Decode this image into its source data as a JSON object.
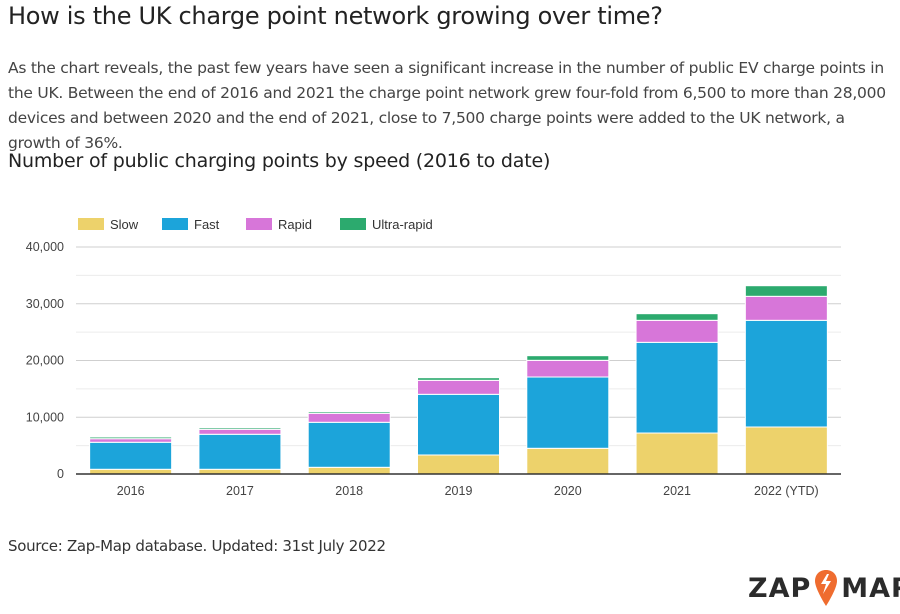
{
  "heading": "How is the UK charge point network growing over time?",
  "intro": "As the chart reveals, the past few years have seen a significant increase in the number of public EV charge points in the UK. Between the end of 2016 and 2021 the charge point network grew four-fold from 6,500 to more than 28,000 devices and between 2020 and the end of 2021, close to 7,500 charge points were added to the UK network, a growth of 36%.",
  "chart_heading": "Number of public charging points by speed (2016 to date)",
  "source": "Source: Zap-Map database. Updated: 31st July 2022",
  "logo": {
    "left": "ZAP",
    "right": "MAP",
    "mark": "®",
    "accent": "#ef6c2f"
  },
  "chart_data": {
    "type": "bar",
    "stacked": true,
    "categories": [
      "2016",
      "2017",
      "2018",
      "2019",
      "2020",
      "2021",
      "2022 (YTD)"
    ],
    "series": [
      {
        "name": "Slow",
        "color": "#edd26b",
        "values": [
          830,
          830,
          1180,
          3350,
          4530,
          7220,
          8280
        ]
      },
      {
        "name": "Fast",
        "color": "#1ca4da",
        "values": [
          4760,
          6170,
          7930,
          10690,
          12560,
          15980,
          18800
        ]
      },
      {
        "name": "Rapid",
        "color": "#d776d9",
        "values": [
          630,
          880,
          1590,
          2470,
          2940,
          3880,
          4230
        ]
      },
      {
        "name": "Ultra-rapid",
        "color": "#2caa6e",
        "values": [
          300,
          280,
          280,
          460,
          820,
          1170,
          1870
        ]
      }
    ],
    "ylim": [
      0,
      40000
    ],
    "yticks": [
      "0",
      "10,000",
      "20,000",
      "30,000",
      "40,000"
    ],
    "yticks_values": [
      0,
      10000,
      20000,
      30000,
      40000
    ],
    "grid": true,
    "legend": "top-left"
  }
}
